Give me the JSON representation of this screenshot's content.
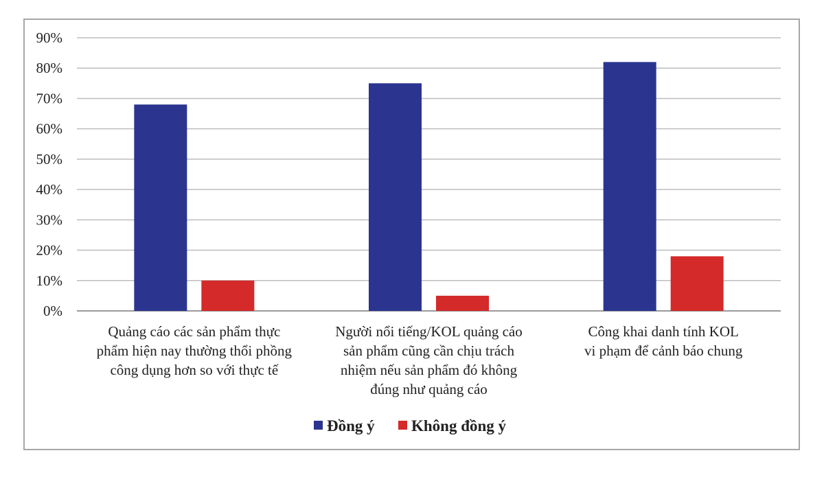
{
  "chart_data": {
    "type": "bar",
    "categories": [
      [
        "Quảng cáo các sản phẩm thực",
        "phẩm hiện nay thường thổi phồng",
        "công dụng hơn so với thực tế"
      ],
      [
        "Người nổi tiếng/KOL quảng cáo",
        "sản phẩm cũng cần chịu trách",
        "nhiệm nếu sản phẩm đó không",
        "đúng như quảng cáo"
      ],
      [
        "Công khai danh tính KOL",
        "vi phạm để cảnh báo chung"
      ]
    ],
    "series": [
      {
        "name": "Đồng ý",
        "color": "#2b3590",
        "values": [
          68,
          75,
          82
        ]
      },
      {
        "name": "Không đồng ý",
        "color": "#d42a2a",
        "values": [
          10,
          5,
          18
        ]
      }
    ],
    "ylim": [
      0,
      90
    ],
    "yticks": [
      0,
      10,
      20,
      30,
      40,
      50,
      60,
      70,
      80,
      90
    ],
    "ytick_labels": [
      "0%",
      "10%",
      "20%",
      "30%",
      "40%",
      "50%",
      "60%",
      "70%",
      "80%",
      "90%"
    ],
    "grid": true,
    "legend_position": "bottom-center",
    "title": "",
    "xlabel": "",
    "ylabel": ""
  }
}
